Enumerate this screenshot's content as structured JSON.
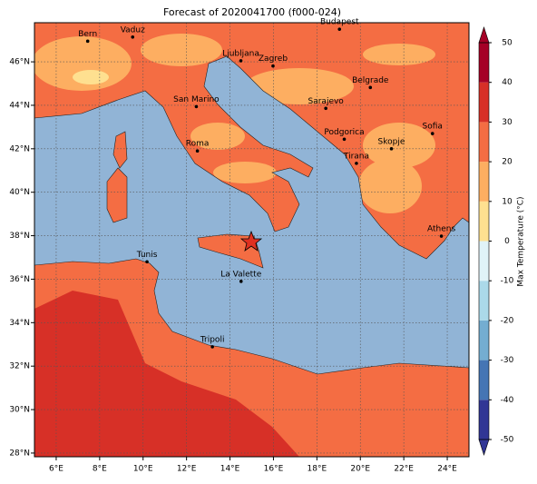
{
  "title": "Forecast of 2020041700 (f000-024)",
  "map": {
    "xlim": [
      5,
      25
    ],
    "ylim": [
      27.83,
      47.8
    ],
    "xticks": [
      {
        "value": 6,
        "label": "6°E"
      },
      {
        "value": 8,
        "label": "8°E"
      },
      {
        "value": 10,
        "label": "10°E"
      },
      {
        "value": 12,
        "label": "12°E"
      },
      {
        "value": 14,
        "label": "14°E"
      },
      {
        "value": 16,
        "label": "16°E"
      },
      {
        "value": 18,
        "label": "18°E"
      },
      {
        "value": 20,
        "label": "20°E"
      },
      {
        "value": 22,
        "label": "22°E"
      },
      {
        "value": 24,
        "label": "24°E"
      }
    ],
    "yticks": [
      {
        "value": 28,
        "label": "28°N"
      },
      {
        "value": 30,
        "label": "30°N"
      },
      {
        "value": 32,
        "label": "32°N"
      },
      {
        "value": 34,
        "label": "34°N"
      },
      {
        "value": 36,
        "label": "36°N"
      },
      {
        "value": 38,
        "label": "38°N"
      },
      {
        "value": 40,
        "label": "40°N"
      },
      {
        "value": 42,
        "label": "42°N"
      },
      {
        "value": 44,
        "label": "44°N"
      },
      {
        "value": 46,
        "label": "46°N"
      }
    ],
    "grid": true,
    "cities": [
      {
        "name": "Bern",
        "lon": 7.45,
        "lat": 46.95
      },
      {
        "name": "Vaduz",
        "lon": 9.52,
        "lat": 47.14
      },
      {
        "name": "Budapest",
        "lon": 19.04,
        "lat": 47.5
      },
      {
        "name": "Ljubljana",
        "lon": 14.5,
        "lat": 46.05
      },
      {
        "name": "Zagreb",
        "lon": 15.98,
        "lat": 45.81
      },
      {
        "name": "Belgrade",
        "lon": 20.46,
        "lat": 44.82
      },
      {
        "name": "San Marino",
        "lon": 12.45,
        "lat": 43.94
      },
      {
        "name": "Sarajevo",
        "lon": 18.41,
        "lat": 43.86
      },
      {
        "name": "Roma",
        "lon": 12.5,
        "lat": 41.9
      },
      {
        "name": "Podgorica",
        "lon": 19.26,
        "lat": 42.44
      },
      {
        "name": "Skopje",
        "lon": 21.43,
        "lat": 42.0
      },
      {
        "name": "Sofia",
        "lon": 23.32,
        "lat": 42.7
      },
      {
        "name": "Tirana",
        "lon": 19.82,
        "lat": 41.33
      },
      {
        "name": "Athens",
        "lon": 23.73,
        "lat": 37.98
      },
      {
        "name": "Tunis",
        "lon": 10.18,
        "lat": 36.8
      },
      {
        "name": "La Valette",
        "lon": 14.51,
        "lat": 35.9
      },
      {
        "name": "Tripoli",
        "lon": 13.19,
        "lat": 32.89
      }
    ]
  },
  "colorbar": {
    "label": "Max Temperature (°C)",
    "ticks": [
      -50,
      -40,
      -30,
      -20,
      -10,
      0,
      10,
      20,
      30,
      40,
      50
    ],
    "colors": [
      "#313695",
      "#4575b4",
      "#74add1",
      "#abd9e9",
      "#e0f3f8",
      "#fee090",
      "#fdae61",
      "#f46d43",
      "#d73027",
      "#a50026"
    ]
  }
}
